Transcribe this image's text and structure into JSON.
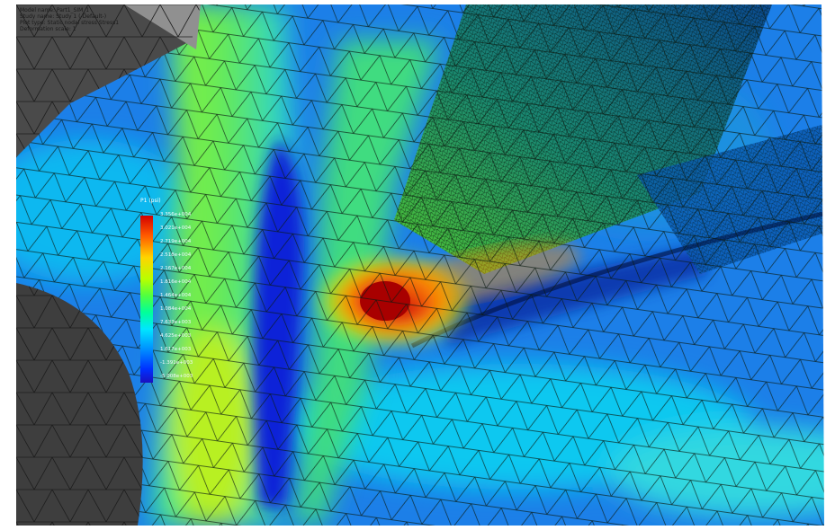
{
  "info_lines": [
    "Model name: Part1_SIM_1",
    "Study name: Study 1 (-Default-)",
    "Plot type: Static nodal stress Stress1",
    "Deformation scale: 1"
  ],
  "legend": {
    "title": "P1 (psi)",
    "ticks": [
      "3.356e+004",
      "3.021e+004",
      "2.719e+004",
      "2.518e+004",
      "2.167e+004",
      "1.816e+004",
      "1.464e+004",
      "1.084e+004",
      "7.633e+003",
      "4.625e+003",
      "1.617e+003",
      "-1.391e+003",
      "-5.008e+003"
    ]
  },
  "colors": {
    "max": "#d40000",
    "high": "#ffd400",
    "mid": "#50ff40",
    "low": "#00e6ff",
    "min": "#1a10c0",
    "mesh_lines": "#0b1a10",
    "background_part": "#454545"
  }
}
